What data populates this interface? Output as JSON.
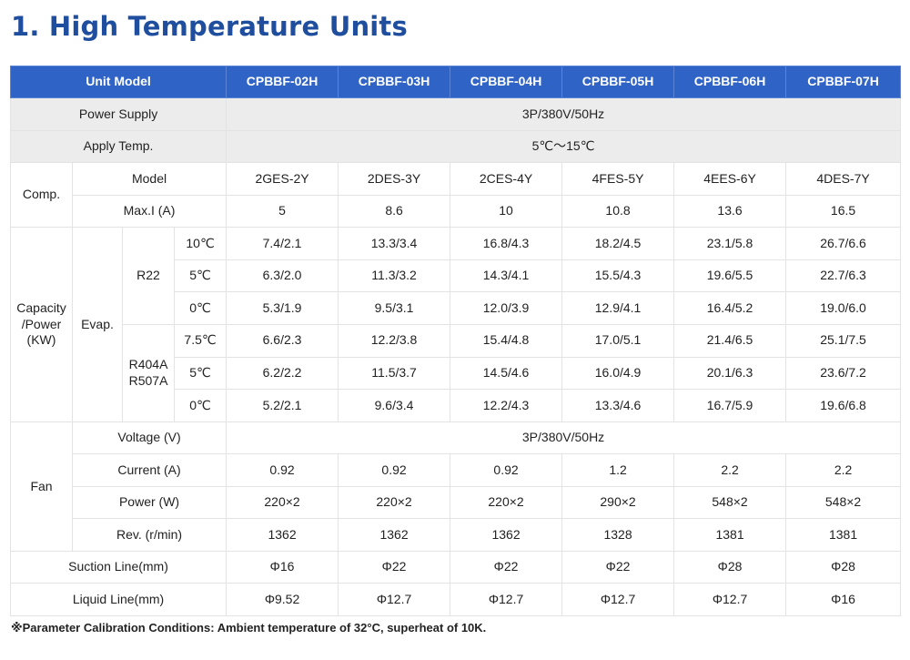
{
  "title": "1. High Temperature Units",
  "header": {
    "unit_model": "Unit Model",
    "models": [
      "CPBBF-02H",
      "CPBBF-03H",
      "CPBBF-04H",
      "CPBBF-05H",
      "CPBBF-06H",
      "CPBBF-07H"
    ]
  },
  "power_supply": {
    "label": "Power Supply",
    "value": "3P/380V/50Hz"
  },
  "apply_temp": {
    "label": "Apply Temp.",
    "value": "5℃～15℃"
  },
  "comp": {
    "label": "Comp.",
    "model": {
      "label": "Model",
      "values": [
        "2GES-2Y",
        "2DES-3Y",
        "2CES-4Y",
        "4FES-5Y",
        "4EES-6Y",
        "4DES-7Y"
      ]
    },
    "maxi": {
      "label": "Max.I (A)",
      "values": [
        "5",
        "8.6",
        "10",
        "10.8",
        "13.6",
        "16.5"
      ]
    }
  },
  "capacity": {
    "label_lines": [
      "Capacity",
      "/Power",
      "(KW)"
    ],
    "evap_label": "Evap.",
    "groups": [
      {
        "refrigerant_lines": [
          "R22"
        ],
        "rows": [
          {
            "temp": "10℃",
            "values": [
              "7.4/2.1",
              "13.3/3.4",
              "16.8/4.3",
              "18.2/4.5",
              "23.1/5.8",
              "26.7/6.6"
            ]
          },
          {
            "temp": "5℃",
            "values": [
              "6.3/2.0",
              "11.3/3.2",
              "14.3/4.1",
              "15.5/4.3",
              "19.6/5.5",
              "22.7/6.3"
            ]
          },
          {
            "temp": "0℃",
            "values": [
              "5.3/1.9",
              "9.5/3.1",
              "12.0/3.9",
              "12.9/4.1",
              "16.4/5.2",
              "19.0/6.0"
            ]
          }
        ]
      },
      {
        "refrigerant_lines": [
          "R404A",
          "R507A"
        ],
        "rows": [
          {
            "temp": "7.5℃",
            "values": [
              "6.6/2.3",
              "12.2/3.8",
              "15.4/4.8",
              "17.0/5.1",
              "21.4/6.5",
              "25.1/7.5"
            ]
          },
          {
            "temp": "5℃",
            "values": [
              "6.2/2.2",
              "11.5/3.7",
              "14.5/4.6",
              "16.0/4.9",
              "20.1/6.3",
              "23.6/7.2"
            ]
          },
          {
            "temp": "0℃",
            "values": [
              "5.2/2.1",
              "9.6/3.4",
              "12.2/4.3",
              "13.3/4.6",
              "16.7/5.9",
              "19.6/6.8"
            ]
          }
        ]
      }
    ]
  },
  "fan": {
    "label": "Fan",
    "voltage": {
      "label": "Voltage (V)",
      "value": "3P/380V/50Hz"
    },
    "current": {
      "label": "Current (A)",
      "values": [
        "0.92",
        "0.92",
        "0.92",
        "1.2",
        "2.2",
        "2.2"
      ]
    },
    "power": {
      "label": "Power (W)",
      "values": [
        "220×2",
        "220×2",
        "220×2",
        "290×2",
        "548×2",
        "548×2"
      ]
    },
    "rev": {
      "label": "Rev. (r/min)",
      "values": [
        "1362",
        "1362",
        "1362",
        "1328",
        "1381",
        "1381"
      ]
    }
  },
  "suction": {
    "label": "Suction Line(mm)",
    "values": [
      "Φ16",
      "Φ22",
      "Φ22",
      "Φ22",
      "Φ28",
      "Φ28"
    ]
  },
  "liquid": {
    "label": "Liquid Line(mm)",
    "values": [
      "Φ9.52",
      "Φ12.7",
      "Φ12.7",
      "Φ12.7",
      "Φ12.7",
      "Φ16"
    ]
  },
  "note": "※Parameter Calibration Conditions: Ambient temperature of 32°C, superheat of 10K."
}
